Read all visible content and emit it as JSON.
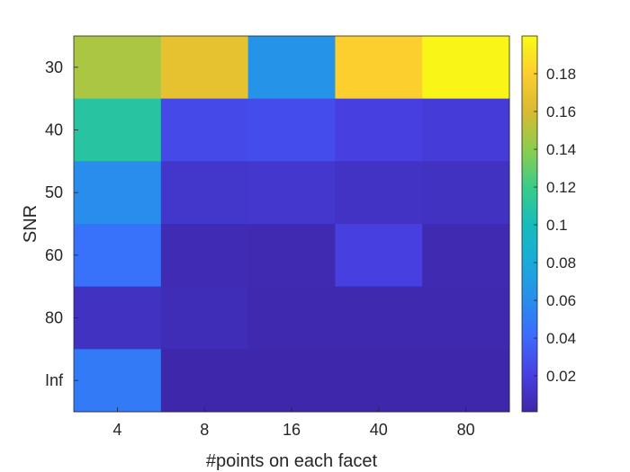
{
  "chart_data": {
    "type": "heatmap",
    "xlabel": "#points on each facet",
    "ylabel": "SNR",
    "x_categories": [
      "4",
      "8",
      "16",
      "40",
      "80"
    ],
    "y_categories": [
      "30",
      "40",
      "50",
      "60",
      "80",
      "Inf"
    ],
    "values": [
      [
        0.148,
        0.168,
        0.065,
        0.18,
        0.198
      ],
      [
        0.11,
        0.025,
        0.027,
        0.02,
        0.017
      ],
      [
        0.06,
        0.013,
        0.014,
        0.011,
        0.01
      ],
      [
        0.045,
        0.005,
        0.004,
        0.02,
        0.004
      ],
      [
        0.01,
        0.006,
        0.003,
        0.003,
        0.003
      ],
      [
        0.05,
        0.002,
        0.002,
        0.002,
        0.002
      ]
    ],
    "colorbar": {
      "range": [
        0.001,
        0.2
      ],
      "ticks": [
        0.02,
        0.04,
        0.06,
        0.08,
        0.1,
        0.12,
        0.14,
        0.16,
        0.18
      ],
      "tick_labels": [
        "0.02",
        "0.04",
        "0.06",
        "0.08",
        "0.1",
        "0.12",
        "0.14",
        "0.16",
        "0.18"
      ],
      "colormap": "parula"
    }
  }
}
